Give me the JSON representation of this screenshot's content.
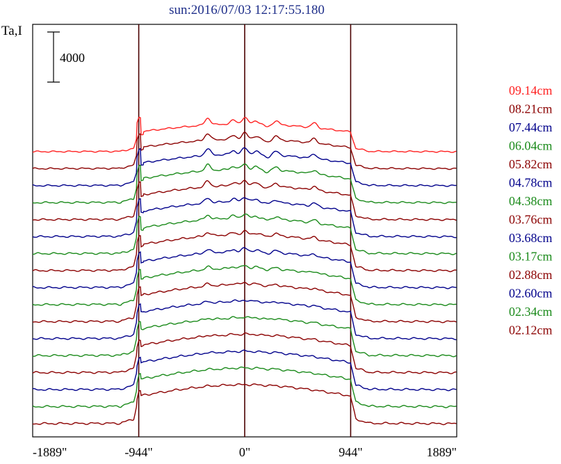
{
  "chart_data": {
    "type": "line",
    "title": "sun:2016/07/03 12:17:55.180",
    "ylabel": "Ta,I",
    "scale_bar": {
      "value": 4000,
      "label": "4000"
    },
    "x_ticks": [
      {
        "value": -1889,
        "label": "-1889\""
      },
      {
        "value": -944,
        "label": "-944\""
      },
      {
        "value": 0,
        "label": "0\""
      },
      {
        "value": 944,
        "label": "944\""
      },
      {
        "value": 1889,
        "label": "1889\""
      }
    ],
    "xlim": [
      -1889,
      1889
    ],
    "vertical_lines": [
      -944,
      0,
      944
    ],
    "stacked_offset": 1430,
    "colors": {
      "top": "#ff2020",
      "dark_red": "#8b0000",
      "blue": "#00008b",
      "green": "#1a8a1a",
      "frame": "#000000",
      "divider": "#4a0000"
    },
    "profile_x": [
      -1889,
      -1300,
      -1150,
      -1050,
      -1000,
      -970,
      -944,
      -930,
      -900,
      -850,
      -800,
      -700,
      -600,
      -500,
      -400,
      -330,
      -280,
      -230,
      -150,
      -100,
      -40,
      0,
      40,
      80,
      130,
      180,
      250,
      300,
      400,
      500,
      620,
      700,
      800,
      870,
      915,
      944,
      980,
      1050,
      1150,
      1300,
      1889
    ],
    "series": [
      {
        "name": "09.14cm",
        "color": "#ff2020",
        "base": 0,
        "amp": 3000,
        "feature": 1.0
      },
      {
        "name": "08.21cm",
        "color": "#8b0000",
        "base": 0,
        "amp": 3200,
        "feature": 0.9
      },
      {
        "name": "07.44cm",
        "color": "#00008b",
        "base": 0,
        "amp": 3400,
        "feature": 0.85
      },
      {
        "name": "06.04cm",
        "color": "#1a8a1a",
        "base": 0,
        "amp": 3600,
        "feature": 0.7
      },
      {
        "name": "05.82cm",
        "color": "#8b0000",
        "base": 0,
        "amp": 3700,
        "feature": 0.65
      },
      {
        "name": "04.78cm",
        "color": "#00008b",
        "base": 0,
        "amp": 3800,
        "feature": 0.55
      },
      {
        "name": "04.38cm",
        "color": "#1a8a1a",
        "base": 0,
        "amp": 3850,
        "feature": 0.5
      },
      {
        "name": "03.76cm",
        "color": "#8b0000",
        "base": 0,
        "amp": 3900,
        "feature": 0.4
      },
      {
        "name": "03.68cm",
        "color": "#00008b",
        "base": 0,
        "amp": 3900,
        "feature": 0.4
      },
      {
        "name": "03.17cm",
        "color": "#1a8a1a",
        "base": 0,
        "amp": 3950,
        "feature": 0.3
      },
      {
        "name": "02.88cm",
        "color": "#8b0000",
        "base": 0,
        "amp": 4000,
        "feature": 0.25
      },
      {
        "name": "02.60cm",
        "color": "#00008b",
        "base": 0,
        "amp": 4000,
        "feature": 0.2
      },
      {
        "name": "02.34cm",
        "color": "#1a8a1a",
        "base": 0,
        "amp": 4050,
        "feature": 0.15
      },
      {
        "name": "02.12cm",
        "color": "#8b0000",
        "base": 0,
        "amp": 4100,
        "feature": 0.1
      },
      {
        "name": "",
        "color": "#00008b",
        "base": 0,
        "amp": 4100,
        "feature": 0.08
      },
      {
        "name": "",
        "color": "#1a8a1a",
        "base": 0,
        "amp": 4150,
        "feature": 0.05
      },
      {
        "name": "",
        "color": "#8b0000",
        "base": 0,
        "amp": 4200,
        "feature": 0.03
      }
    ]
  }
}
